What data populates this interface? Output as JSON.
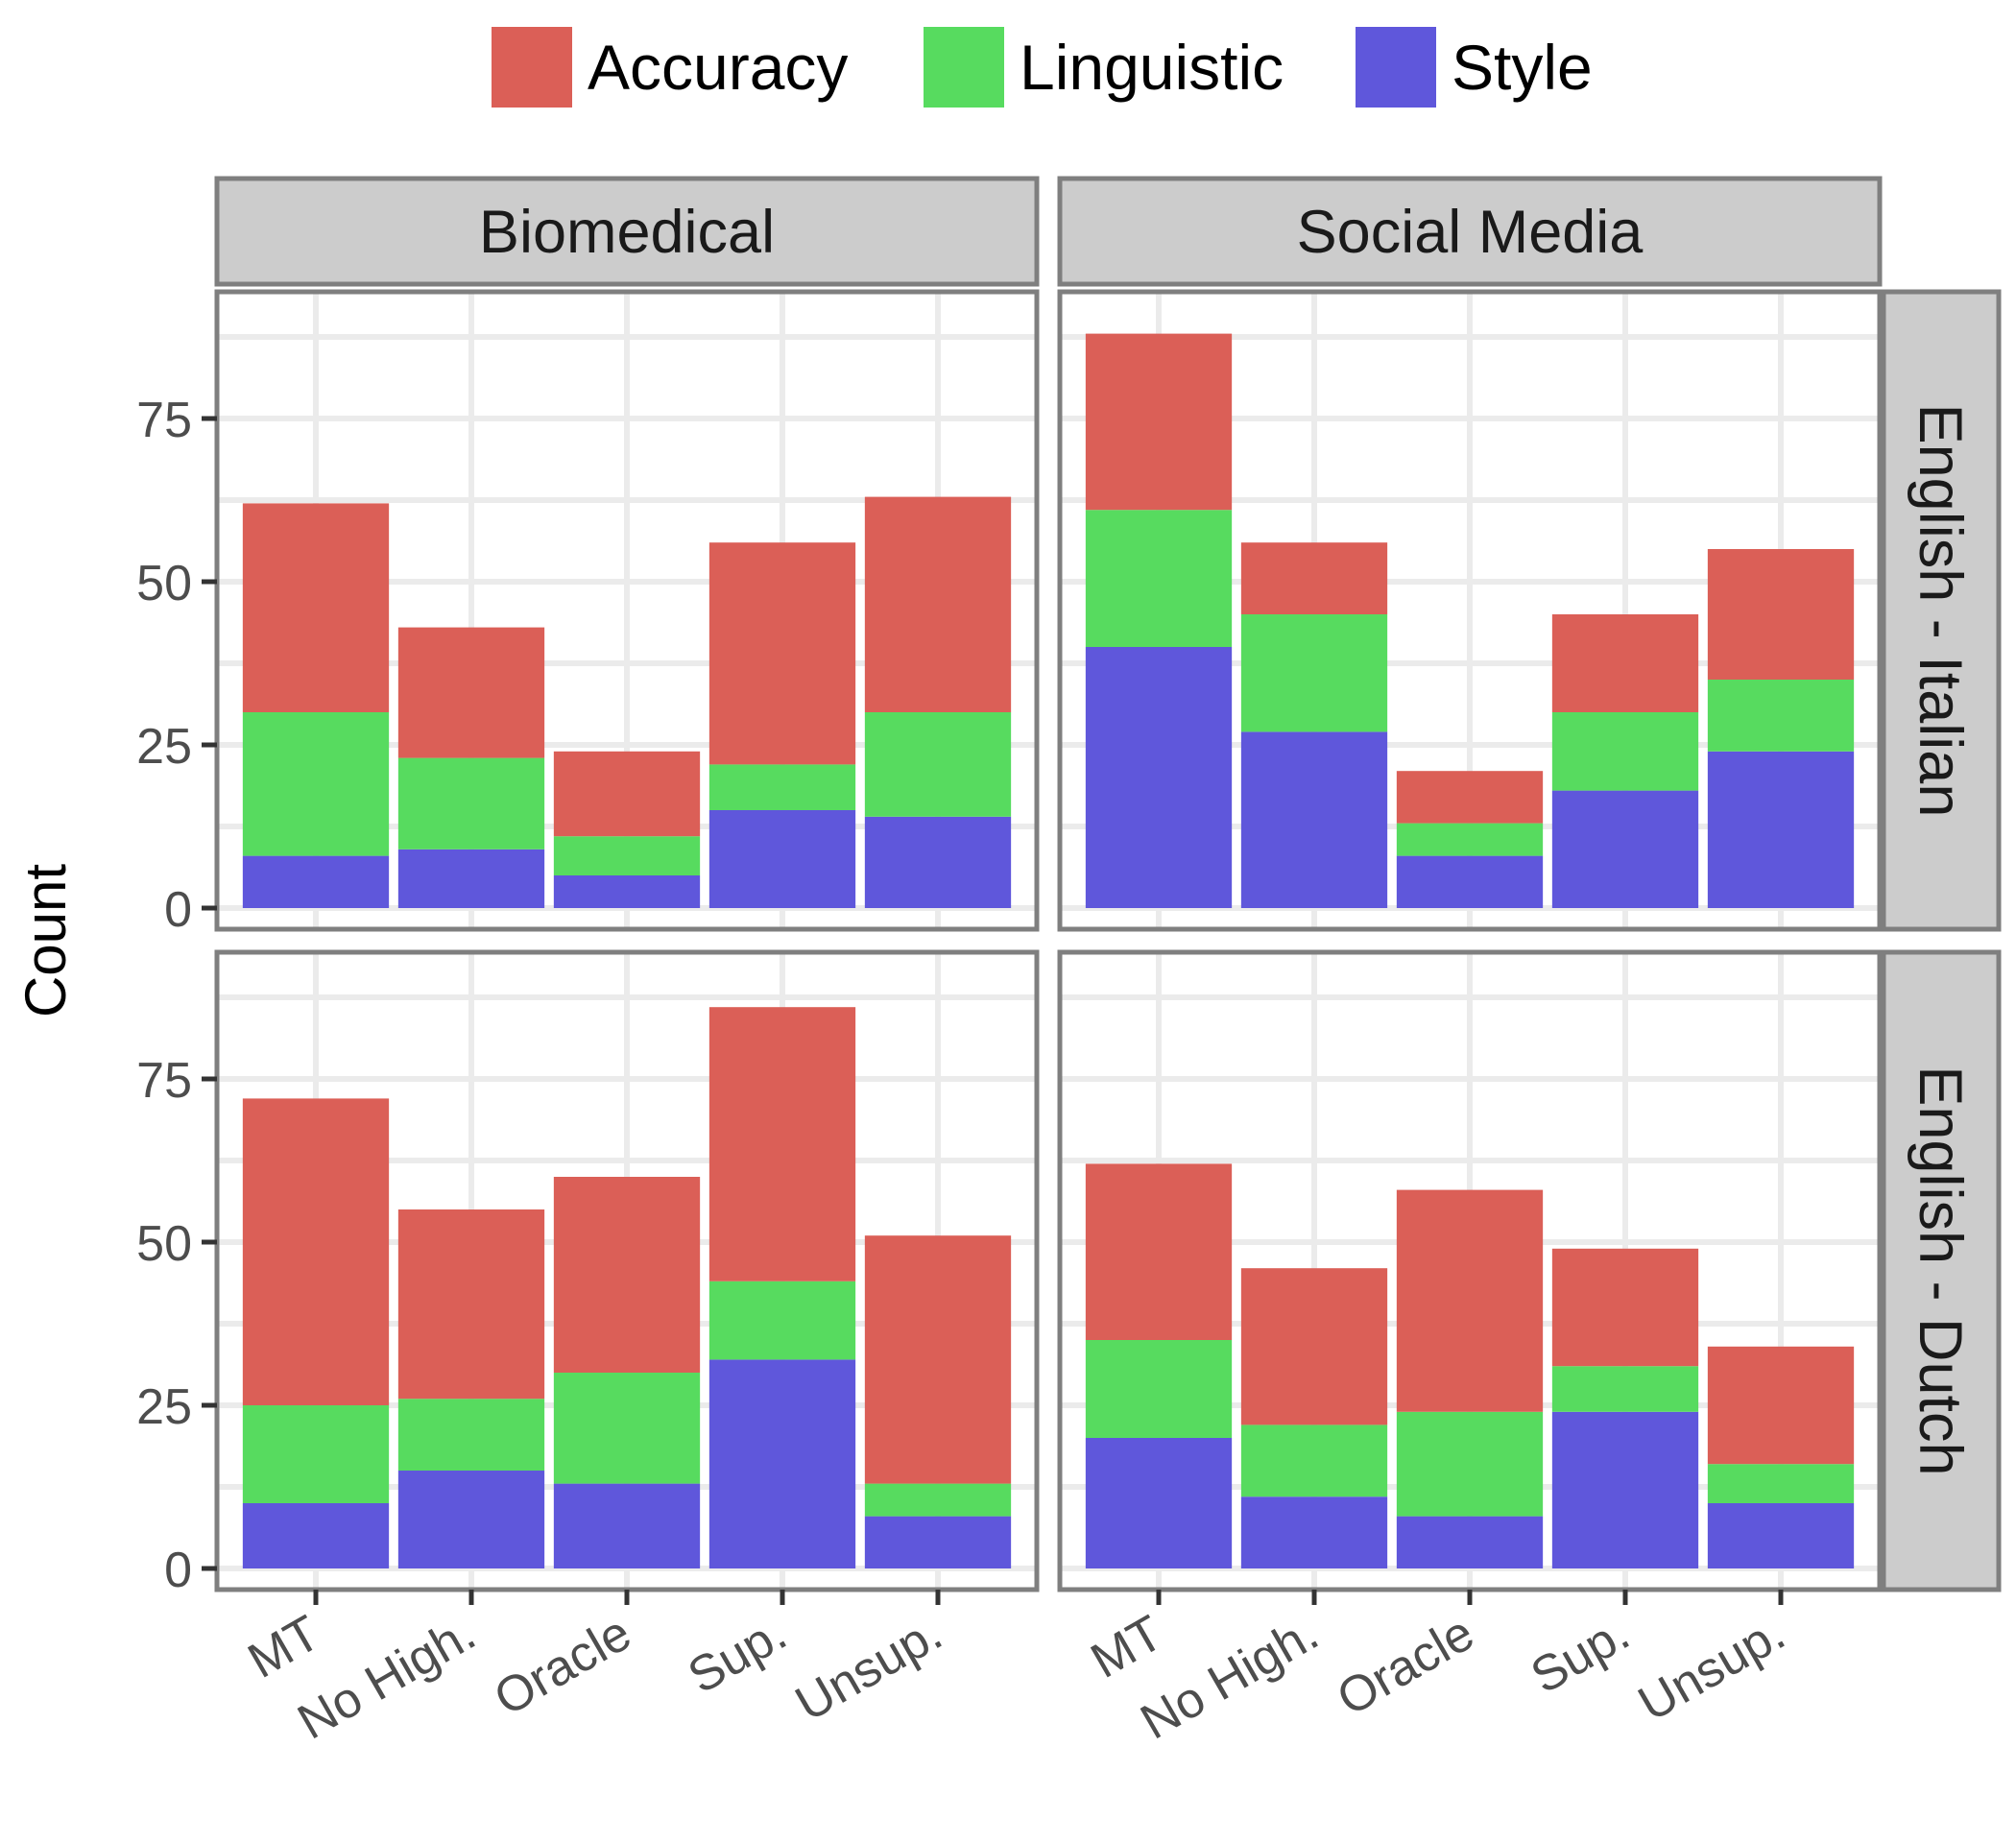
{
  "chart_data": {
    "type": "bar",
    "stacked": true,
    "categories": [
      "MT",
      "No High.",
      "Oracle",
      "Sup.",
      "Unsup."
    ],
    "ylabel": "Count",
    "xlabel": "",
    "ylim": [
      0,
      90
    ],
    "yticks": [
      0,
      25,
      50,
      75
    ],
    "grid": true,
    "legend": {
      "position": "top",
      "entries": [
        "Accuracy",
        "Linguistic",
        "Style"
      ]
    },
    "colors": {
      "Accuracy": "#db5f57",
      "Linguistic": "#57db5f",
      "Style": "#5f57db"
    },
    "facet_columns": [
      "Biomedical",
      "Social Media"
    ],
    "facet_rows": [
      "English - Italian",
      "English - Dutch"
    ],
    "panels": [
      {
        "column": "Biomedical",
        "row": "English - Italian",
        "series": [
          {
            "name": "Style",
            "values": [
              8,
              9,
              5,
              15,
              14
            ]
          },
          {
            "name": "Linguistic",
            "values": [
              22,
              14,
              6,
              7,
              16
            ]
          },
          {
            "name": "Accuracy",
            "values": [
              32,
              20,
              13,
              34,
              33
            ]
          }
        ]
      },
      {
        "column": "Social Media",
        "row": "English - Italian",
        "series": [
          {
            "name": "Style",
            "values": [
              40,
              27,
              8,
              18,
              24
            ]
          },
          {
            "name": "Linguistic",
            "values": [
              21,
              18,
              5,
              12,
              11
            ]
          },
          {
            "name": "Accuracy",
            "values": [
              27,
              11,
              8,
              15,
              20
            ]
          }
        ]
      },
      {
        "column": "Biomedical",
        "row": "English - Dutch",
        "series": [
          {
            "name": "Style",
            "values": [
              10,
              15,
              13,
              32,
              8
            ]
          },
          {
            "name": "Linguistic",
            "values": [
              15,
              11,
              17,
              12,
              5
            ]
          },
          {
            "name": "Accuracy",
            "values": [
              47,
              29,
              30,
              42,
              38
            ]
          }
        ]
      },
      {
        "column": "Social Media",
        "row": "English - Dutch",
        "series": [
          {
            "name": "Style",
            "values": [
              20,
              11,
              8,
              24,
              10
            ]
          },
          {
            "name": "Linguistic",
            "values": [
              15,
              11,
              16,
              7,
              6
            ]
          },
          {
            "name": "Accuracy",
            "values": [
              27,
              24,
              34,
              18,
              18
            ]
          }
        ]
      }
    ]
  }
}
